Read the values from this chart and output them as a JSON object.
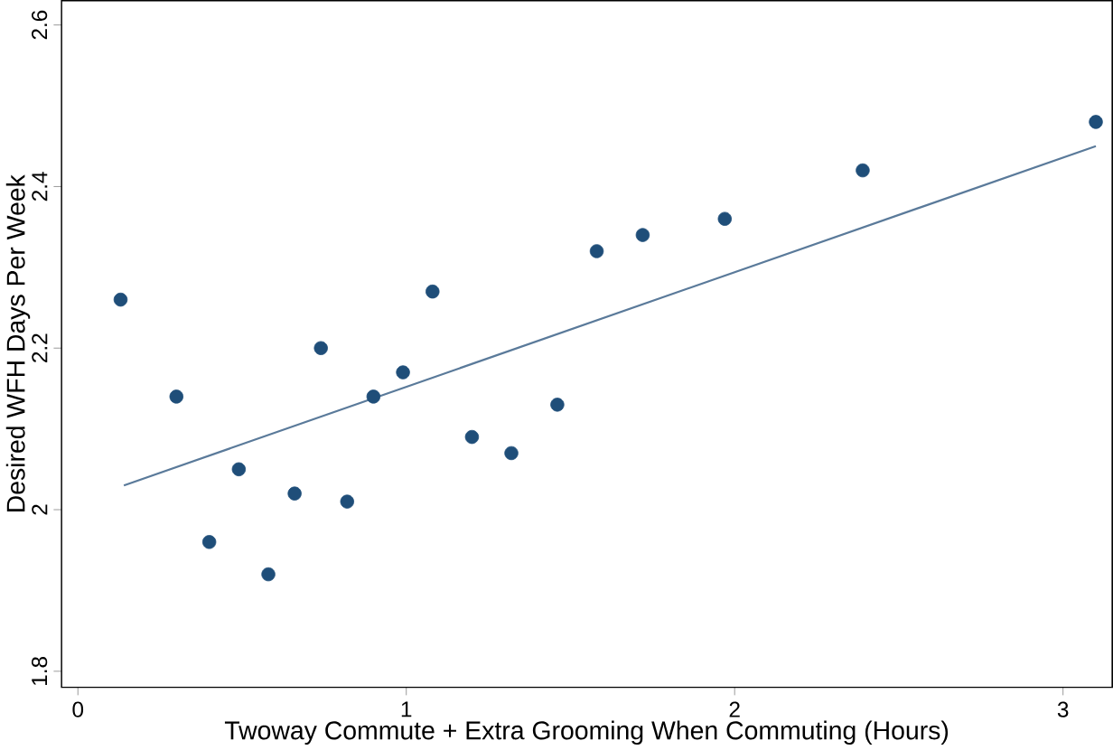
{
  "chart_data": {
    "type": "scatter",
    "xlabel": "Twoway Commute + Extra Grooming When Commuting (Hours)",
    "ylabel": "Desired WFH Days Per Week",
    "xlim": [
      -0.05,
      3.15
    ],
    "ylim": [
      1.78,
      2.63
    ],
    "xticks": [
      0,
      1,
      2,
      3
    ],
    "yticks": [
      1.8,
      2,
      2.2,
      2.4,
      2.6
    ],
    "grid": false,
    "series": [
      {
        "color": "#1f4e79",
        "marker": "circle",
        "x": [
          0.13,
          0.3,
          0.4,
          0.49,
          0.58,
          0.66,
          0.74,
          0.82,
          0.9,
          0.99,
          1.08,
          1.2,
          1.32,
          1.46,
          1.58,
          1.72,
          1.97,
          2.39,
          3.1
        ],
        "values": [
          2.26,
          2.14,
          1.96,
          2.05,
          1.92,
          2.02,
          2.2,
          2.01,
          2.14,
          2.17,
          2.27,
          2.09,
          2.07,
          2.13,
          2.32,
          2.34,
          2.36,
          2.42,
          2.48
        ]
      },
      {
        "type": "line",
        "color": "#5a7a9a",
        "x": [
          0.14,
          3.1
        ],
        "values": [
          2.03,
          2.45
        ],
        "line_style": "solid",
        "marker": "none"
      }
    ]
  }
}
